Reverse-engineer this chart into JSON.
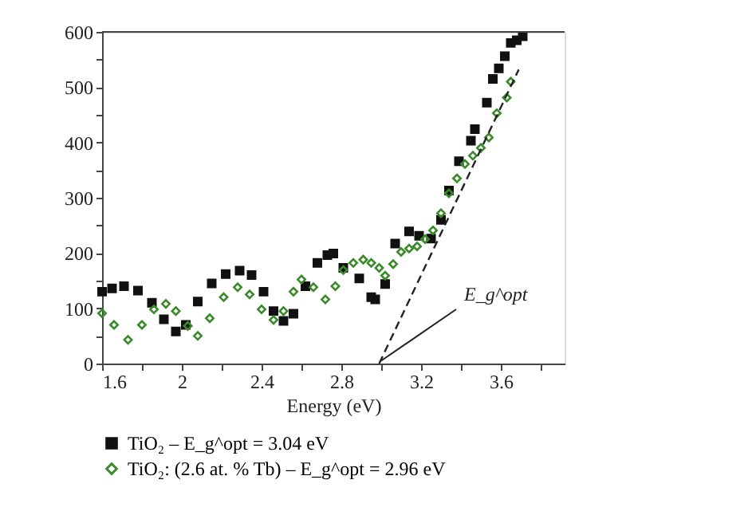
{
  "chart_data": {
    "type": "scatter",
    "xlabel": "Energy (eV)",
    "legend": "bottom",
    "grid": false,
    "xlim": [
      1.6,
      3.92
    ],
    "ylim": [
      0,
      600
    ],
    "xticks": [
      1.6,
      {
        "value": 1.8,
        "label": null
      },
      2,
      {
        "value": 2.2,
        "label": null
      },
      2.4,
      {
        "value": 2.6,
        "label": null
      },
      2.8,
      {
        "value": 3.0,
        "label": null
      },
      3.2,
      {
        "value": 3.4,
        "label": null
      },
      3.6,
      {
        "value": 3.8,
        "label": null
      }
    ],
    "yticks": [
      0,
      {
        "value": 50,
        "label": null
      },
      100,
      {
        "value": 150,
        "label": null
      },
      200,
      {
        "value": 250,
        "label": null
      },
      300,
      {
        "value": 350,
        "label": null
      },
      400,
      {
        "value": 450,
        "label": null
      },
      500,
      {
        "value": 550,
        "label": null
      },
      600
    ],
    "series": [
      {
        "name": "TiO₂ – E_g^opt = 3.04 eV",
        "color": "#111111",
        "marker": "square",
        "x": [
          1.6,
          1.65,
          1.71,
          1.78,
          1.85,
          1.91,
          1.97,
          2.02,
          2.08,
          2.15,
          2.22,
          2.29,
          2.35,
          2.41,
          2.46,
          2.51,
          2.56,
          2.62,
          2.68,
          2.73,
          2.76,
          2.81,
          2.89,
          2.95,
          2.97,
          3.02,
          3.07,
          3.14,
          3.19,
          3.25,
          3.3,
          3.34,
          3.39,
          3.45,
          3.47,
          3.53,
          3.56,
          3.59,
          3.62,
          3.65,
          3.68,
          3.71
        ],
        "values": [
          130,
          136,
          140,
          132,
          110,
          80,
          58,
          70,
          112,
          145,
          162,
          168,
          160,
          130,
          95,
          77,
          90,
          140,
          182,
          196,
          199,
          173,
          154,
          120,
          116,
          144,
          217,
          239,
          231,
          226,
          260,
          313,
          366,
          403,
          424,
          472,
          515,
          534,
          556,
          580,
          585,
          592
        ]
      },
      {
        "name": "TiO₂: (2.6 at. % Tb) – E_g^opt = 2.96 eV",
        "color": "#3a8a2a",
        "marker": "diamond",
        "x": [
          1.6,
          1.66,
          1.73,
          1.8,
          1.86,
          1.92,
          1.97,
          2.03,
          2.08,
          2.14,
          2.21,
          2.28,
          2.34,
          2.4,
          2.46,
          2.51,
          2.56,
          2.6,
          2.66,
          2.72,
          2.77,
          2.81,
          2.86,
          2.91,
          2.95,
          2.99,
          3.02,
          3.06,
          3.1,
          3.14,
          3.18,
          3.22,
          3.26,
          3.3,
          3.34,
          3.38,
          3.42,
          3.46,
          3.5,
          3.54,
          3.58,
          3.63,
          3.65
        ],
        "values": [
          91,
          70,
          43,
          70,
          98,
          108,
          95,
          68,
          50,
          82,
          120,
          138,
          125,
          98,
          79,
          95,
          130,
          152,
          138,
          116,
          140,
          169,
          182,
          188,
          182,
          173,
          159,
          180,
          202,
          208,
          212,
          225,
          241,
          272,
          308,
          335,
          361,
          376,
          390,
          409,
          453,
          481,
          510
        ]
      },
      {
        "type": "line",
        "color": "#222222",
        "line_style": "dashed",
        "x": [
          2.99,
          3.69
        ],
        "values": [
          0,
          532
        ]
      }
    ],
    "annotations": [
      {
        "text": "E_g^opt",
        "x": 3.0,
        "y": 5
      }
    ]
  }
}
